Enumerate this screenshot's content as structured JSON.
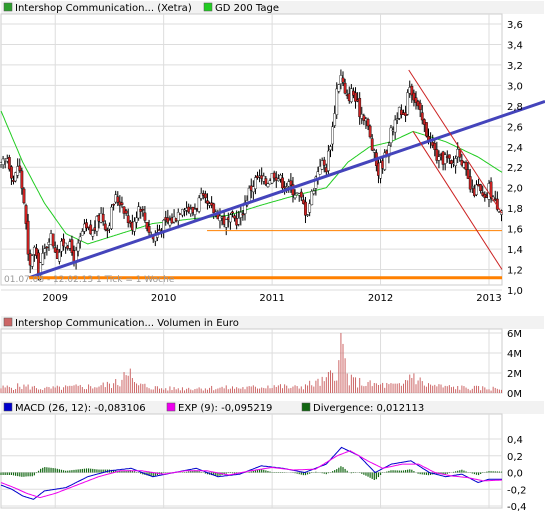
{
  "chart_data": [
    {
      "type": "candlestick",
      "legend": [
        {
          "label": "Intershop Communication... (Xetra)",
          "color": "#2e9e2e"
        },
        {
          "label": "GD 200 Tage",
          "color": "#22cc22"
        }
      ],
      "info_text": "01.07.08 - 12.02.13   1 Tick = 1 Woche",
      "x_ticks": [
        "2009",
        "2010",
        "2011",
        "2012",
        "2013"
      ],
      "x_tick_dates": [
        2009.0,
        2010.0,
        2011.0,
        2012.0,
        2013.0
      ],
      "x_range": [
        2008.5,
        2013.12
      ],
      "y_ticks": [
        "3,6",
        "3,4",
        "3,2",
        "3,0",
        "2,8",
        "2,6",
        "2,4",
        "2,2",
        "2,0",
        "1,8",
        "1,6",
        "1,4",
        "1,2",
        "1,0"
      ],
      "y_range": [
        1.0,
        3.6
      ],
      "grid": true,
      "price_anchors": [
        [
          2008.5,
          2.2
        ],
        [
          2008.56,
          2.3
        ],
        [
          2008.62,
          2.05
        ],
        [
          2008.66,
          2.25
        ],
        [
          2008.72,
          1.8
        ],
        [
          2008.76,
          1.15
        ],
        [
          2008.8,
          1.45
        ],
        [
          2008.84,
          1.2
        ],
        [
          2008.88,
          1.3
        ],
        [
          2008.95,
          1.55
        ],
        [
          2009.02,
          1.35
        ],
        [
          2009.1,
          1.5
        ],
        [
          2009.18,
          1.3
        ],
        [
          2009.26,
          1.6
        ],
        [
          2009.34,
          1.55
        ],
        [
          2009.42,
          1.75
        ],
        [
          2009.48,
          1.6
        ],
        [
          2009.55,
          1.9
        ],
        [
          2009.62,
          1.85
        ],
        [
          2009.7,
          1.6
        ],
        [
          2009.78,
          1.85
        ],
        [
          2009.84,
          1.65
        ],
        [
          2009.9,
          1.5
        ],
        [
          2009.96,
          1.6
        ],
        [
          2010.02,
          1.65
        ],
        [
          2010.1,
          1.7
        ],
        [
          2010.18,
          1.85
        ],
        [
          2010.26,
          1.75
        ],
        [
          2010.34,
          1.9
        ],
        [
          2010.42,
          1.8
        ],
        [
          2010.5,
          1.75
        ],
        [
          2010.58,
          1.65
        ],
        [
          2010.64,
          1.7
        ],
        [
          2010.7,
          1.68
        ],
        [
          2010.78,
          1.95
        ],
        [
          2010.86,
          2.1
        ],
        [
          2010.94,
          2.05
        ],
        [
          2011.02,
          2.15
        ],
        [
          2011.1,
          2.05
        ],
        [
          2011.18,
          2.0
        ],
        [
          2011.26,
          1.9
        ],
        [
          2011.32,
          1.75
        ],
        [
          2011.38,
          2.0
        ],
        [
          2011.44,
          2.25
        ],
        [
          2011.5,
          2.2
        ],
        [
          2011.56,
          2.6
        ],
        [
          2011.6,
          3.0
        ],
        [
          2011.64,
          3.1
        ],
        [
          2011.68,
          2.85
        ],
        [
          2011.74,
          2.95
        ],
        [
          2011.8,
          2.75
        ],
        [
          2011.86,
          2.7
        ],
        [
          2011.92,
          2.4
        ],
        [
          2011.98,
          2.15
        ],
        [
          2012.04,
          2.3
        ],
        [
          2012.1,
          2.55
        ],
        [
          2012.16,
          2.75
        ],
        [
          2012.22,
          2.65
        ],
        [
          2012.26,
          3.05
        ],
        [
          2012.32,
          2.85
        ],
        [
          2012.4,
          2.6
        ],
        [
          2012.48,
          2.4
        ],
        [
          2012.54,
          2.25
        ],
        [
          2012.6,
          2.3
        ],
        [
          2012.66,
          2.2
        ],
        [
          2012.72,
          2.4
        ],
        [
          2012.78,
          2.15
        ],
        [
          2012.84,
          1.95
        ],
        [
          2012.9,
          2.0
        ],
        [
          2012.96,
          1.85
        ],
        [
          2013.0,
          2.0
        ],
        [
          2013.06,
          1.85
        ],
        [
          2013.12,
          1.8
        ]
      ],
      "ma200_anchors": [
        [
          2008.5,
          2.75
        ],
        [
          2008.7,
          2.25
        ],
        [
          2008.9,
          1.85
        ],
        [
          2009.1,
          1.55
        ],
        [
          2009.3,
          1.45
        ],
        [
          2009.6,
          1.55
        ],
        [
          2009.9,
          1.65
        ],
        [
          2010.3,
          1.7
        ],
        [
          2010.6,
          1.73
        ],
        [
          2010.9,
          1.83
        ],
        [
          2011.2,
          1.92
        ],
        [
          2011.5,
          2.0
        ],
        [
          2011.7,
          2.25
        ],
        [
          2011.9,
          2.4
        ],
        [
          2012.1,
          2.45
        ],
        [
          2012.3,
          2.55
        ],
        [
          2012.6,
          2.45
        ],
        [
          2012.9,
          2.3
        ],
        [
          2013.12,
          2.15
        ]
      ],
      "trend_lines": [
        {
          "color": "#4444bb",
          "points": [
            [
              2008.76,
              1.12
            ],
            [
              2013.12,
              2.7
            ]
          ]
        },
        {
          "color": "#ff8000",
          "points": [
            [
              2008.76,
              1.12
            ],
            [
              2013.12,
              1.12
            ]
          ]
        },
        {
          "color": "#ff8000",
          "points": [
            [
              2010.4,
              1.58
            ],
            [
              2013.12,
              1.58
            ]
          ]
        },
        {
          "color": "#cc2222",
          "points": [
            [
              2012.26,
              3.15
            ],
            [
              2013.12,
              1.75
            ]
          ]
        },
        {
          "color": "#cc2222",
          "points": [
            [
              2012.3,
              2.55
            ],
            [
              2013.12,
              1.2
            ]
          ]
        }
      ]
    },
    {
      "type": "bar",
      "legend": [
        {
          "label": "Intershop Communication... Volumen in Euro",
          "color": "#cc6666"
        }
      ],
      "y_ticks": [
        "6M",
        "4M",
        "2M",
        "0M"
      ],
      "y_range": [
        0,
        6
      ],
      "grid": true,
      "volume_anchors": [
        [
          2008.5,
          0.6
        ],
        [
          2008.7,
          0.8
        ],
        [
          2008.9,
          0.5
        ],
        [
          2009.2,
          0.7
        ],
        [
          2009.4,
          0.8
        ],
        [
          2009.6,
          1.2
        ],
        [
          2009.66,
          4.0
        ],
        [
          2009.72,
          1.0
        ],
        [
          2010.0,
          0.5
        ],
        [
          2010.4,
          0.6
        ],
        [
          2010.8,
          0.6
        ],
        [
          2011.0,
          0.9
        ],
        [
          2011.2,
          0.6
        ],
        [
          2011.5,
          1.4
        ],
        [
          2011.62,
          3.5
        ],
        [
          2011.64,
          6.0
        ],
        [
          2011.7,
          1.5
        ],
        [
          2011.9,
          1.0
        ],
        [
          2012.2,
          0.8
        ],
        [
          2012.28,
          2.3
        ],
        [
          2012.4,
          1.0
        ],
        [
          2012.6,
          0.7
        ],
        [
          2012.8,
          0.6
        ],
        [
          2013.12,
          0.5
        ]
      ]
    },
    {
      "type": "line",
      "legend": [
        {
          "label": "MACD (26, 12): -0,083106",
          "color": "#0000cc"
        },
        {
          "label": "EXP (9): -0,095219",
          "color": "#ee00ee"
        },
        {
          "label": "Divergence: 0,012113",
          "color": "#116611"
        }
      ],
      "y_ticks": [
        "0,4",
        "0,2",
        "0,0",
        "-0,2",
        "-0,4"
      ],
      "y_range": [
        -0.4,
        0.4
      ],
      "grid": true,
      "macd_anchors": [
        [
          2008.5,
          -0.15
        ],
        [
          2008.6,
          -0.2
        ],
        [
          2008.7,
          -0.28
        ],
        [
          2008.8,
          -0.32
        ],
        [
          2008.9,
          -0.22
        ],
        [
          2009.1,
          -0.18
        ],
        [
          2009.3,
          -0.05
        ],
        [
          2009.5,
          0.02
        ],
        [
          2009.7,
          0.05
        ],
        [
          2009.9,
          -0.05
        ],
        [
          2010.1,
          0.0
        ],
        [
          2010.3,
          0.05
        ],
        [
          2010.5,
          -0.05
        ],
        [
          2010.7,
          -0.02
        ],
        [
          2010.9,
          0.08
        ],
        [
          2011.1,
          0.05
        ],
        [
          2011.3,
          0.0
        ],
        [
          2011.5,
          0.1
        ],
        [
          2011.64,
          0.3
        ],
        [
          2011.8,
          0.2
        ],
        [
          2011.95,
          0.0
        ],
        [
          2012.1,
          0.1
        ],
        [
          2012.28,
          0.14
        ],
        [
          2012.45,
          0.0
        ],
        [
          2012.6,
          -0.05
        ],
        [
          2012.75,
          -0.02
        ],
        [
          2012.9,
          -0.12
        ],
        [
          2013.0,
          -0.08
        ],
        [
          2013.12,
          -0.08
        ]
      ],
      "exp_anchors": [
        [
          2008.5,
          -0.12
        ],
        [
          2008.62,
          -0.18
        ],
        [
          2008.74,
          -0.25
        ],
        [
          2008.86,
          -0.3
        ],
        [
          2009.0,
          -0.25
        ],
        [
          2009.2,
          -0.15
        ],
        [
          2009.4,
          -0.05
        ],
        [
          2009.6,
          0.02
        ],
        [
          2009.8,
          0.02
        ],
        [
          2010.0,
          -0.02
        ],
        [
          2010.2,
          0.02
        ],
        [
          2010.4,
          0.02
        ],
        [
          2010.6,
          -0.03
        ],
        [
          2010.8,
          0.02
        ],
        [
          2011.0,
          0.06
        ],
        [
          2011.2,
          0.03
        ],
        [
          2011.4,
          0.04
        ],
        [
          2011.6,
          0.2
        ],
        [
          2011.72,
          0.26
        ],
        [
          2011.88,
          0.14
        ],
        [
          2012.02,
          0.05
        ],
        [
          2012.2,
          0.1
        ],
        [
          2012.35,
          0.1
        ],
        [
          2012.5,
          0.0
        ],
        [
          2012.65,
          -0.04
        ],
        [
          2012.8,
          -0.06
        ],
        [
          2012.95,
          -0.1
        ],
        [
          2013.12,
          -0.09
        ]
      ]
    }
  ]
}
